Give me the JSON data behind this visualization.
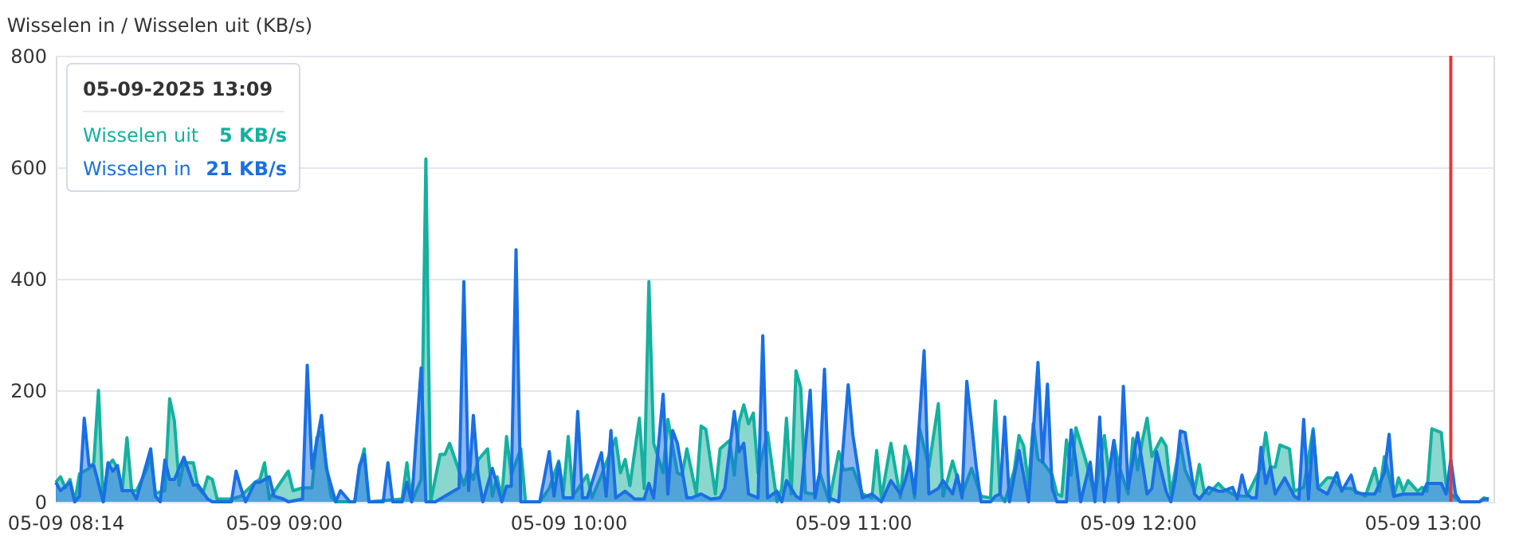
{
  "chart_data": {
    "type": "area",
    "title": "Wisselen in / Wisselen uit (KB/s)",
    "xlim": [
      "2025-05-09T08:12",
      "2025-05-09T13:15"
    ],
    "xticks": [
      {
        "value": "2025-05-09T08:14",
        "label": "05-09 08:14"
      },
      {
        "value": "2025-05-09T09:00",
        "label": "05-09 09:00"
      },
      {
        "value": "2025-05-09T10:00",
        "label": "05-09 10:00"
      },
      {
        "value": "2025-05-09T11:00",
        "label": "05-09 11:00"
      },
      {
        "value": "2025-05-09T12:00",
        "label": "05-09 12:00"
      },
      {
        "value": "2025-05-09T13:00",
        "label": "05-09 13:00"
      }
    ],
    "ylim": [
      0,
      800
    ],
    "yticks": [
      0,
      200,
      400,
      600,
      800
    ],
    "grid": "y",
    "legend": "top left",
    "annotations": [
      "05-09-2025 13:09",
      "5 KB/s",
      "21 KB/s"
    ],
    "ref_lines": [
      {
        "axis": "x",
        "value": "2025-05-09T13:06",
        "color": "#e53935"
      }
    ],
    "series": [
      {
        "name": "Wisselen uit",
        "color": "#14b0a0",
        "x": [
          "2025-05-09T08:12",
          "2025-05-09T08:13",
          "2025-05-09T08:14",
          "2025-05-09T08:15",
          "2025-05-09T08:16",
          "2025-05-09T08:17",
          "2025-05-09T08:19",
          "2025-05-09T08:20",
          "2025-05-09T08:21",
          "2025-05-09T08:22",
          "2025-05-09T08:23",
          "2025-05-09T08:24",
          "2025-05-09T08:25",
          "2025-05-09T08:26",
          "2025-05-09T08:27",
          "2025-05-09T08:28",
          "2025-05-09T08:29",
          "2025-05-09T08:31",
          "2025-05-09T08:32",
          "2025-05-09T08:33",
          "2025-05-09T08:35",
          "2025-05-09T08:36",
          "2025-05-09T08:37",
          "2025-05-09T08:38",
          "2025-05-09T08:39",
          "2025-05-09T08:41",
          "2025-05-09T08:42",
          "2025-05-09T08:43",
          "2025-05-09T08:44",
          "2025-05-09T08:45",
          "2025-05-09T08:46",
          "2025-05-09T08:49",
          "2025-05-09T08:51",
          "2025-05-09T08:54",
          "2025-05-09T08:55",
          "2025-05-09T08:56",
          "2025-05-09T08:57",
          "2025-05-09T08:59",
          "2025-05-09T09:01",
          "2025-05-09T09:02",
          "2025-05-09T09:04",
          "2025-05-09T09:06",
          "2025-05-09T09:07",
          "2025-05-09T09:08",
          "2025-05-09T09:10",
          "2025-05-09T09:11",
          "2025-05-09T09:15",
          "2025-05-09T09:16",
          "2025-05-09T09:17",
          "2025-05-09T09:18",
          "2025-05-09T09:25",
          "2025-05-09T09:26",
          "2025-05-09T09:27",
          "2025-05-09T09:29",
          "2025-05-09T09:30",
          "2025-05-09T09:31",
          "2025-05-09T09:33",
          "2025-05-09T09:34",
          "2025-05-09T09:35",
          "2025-05-09T09:36",
          "2025-05-09T09:38",
          "2025-05-09T09:39",
          "2025-05-09T09:40",
          "2025-05-09T09:41",
          "2025-05-09T09:43",
          "2025-05-09T09:44",
          "2025-05-09T09:45",
          "2025-05-09T09:46",
          "2025-05-09T09:47",
          "2025-05-09T09:48",
          "2025-05-09T09:50",
          "2025-05-09T09:51",
          "2025-05-09T09:54",
          "2025-05-09T09:56",
          "2025-05-09T09:58",
          "2025-05-09T09:59",
          "2025-05-09T10:00",
          "2025-05-09T10:01",
          "2025-05-09T10:04",
          "2025-05-09T10:05",
          "2025-05-09T10:07",
          "2025-05-09T10:10",
          "2025-05-09T10:11",
          "2025-05-09T10:12",
          "2025-05-09T10:13",
          "2025-05-09T10:15",
          "2025-05-09T10:16",
          "2025-05-09T10:17",
          "2025-05-09T10:18",
          "2025-05-09T10:20",
          "2025-05-09T10:21",
          "2025-05-09T10:23",
          "2025-05-09T10:24",
          "2025-05-09T10:25",
          "2025-05-09T10:27",
          "2025-05-09T10:28",
          "2025-05-09T10:29",
          "2025-05-09T10:31",
          "2025-05-09T10:32",
          "2025-05-09T10:34",
          "2025-05-09T10:35",
          "2025-05-09T10:36",
          "2025-05-09T10:37",
          "2025-05-09T10:38",
          "2025-05-09T10:39",
          "2025-05-09T10:40",
          "2025-05-09T10:42",
          "2025-05-09T10:44",
          "2025-05-09T10:45",
          "2025-05-09T10:46",
          "2025-05-09T10:47",
          "2025-05-09T10:48",
          "2025-05-09T10:49",
          "2025-05-09T10:50",
          "2025-05-09T10:52",
          "2025-05-09T10:53",
          "2025-05-09T10:55",
          "2025-05-09T10:57",
          "2025-05-09T10:58",
          "2025-05-09T11:00",
          "2025-05-09T11:02",
          "2025-05-09T11:04",
          "2025-05-09T11:05",
          "2025-05-09T11:06",
          "2025-05-09T11:08",
          "2025-05-09T11:10",
          "2025-05-09T11:11",
          "2025-05-09T11:12",
          "2025-05-09T11:13",
          "2025-05-09T11:14",
          "2025-05-09T11:16",
          "2025-05-09T11:18",
          "2025-05-09T11:19",
          "2025-05-09T11:21",
          "2025-05-09T11:22",
          "2025-05-09T11:23",
          "2025-05-09T11:25",
          "2025-05-09T11:27",
          "2025-05-09T11:29",
          "2025-05-09T11:30",
          "2025-05-09T11:31",
          "2025-05-09T11:32",
          "2025-05-09T11:34",
          "2025-05-09T11:35",
          "2025-05-09T11:36",
          "2025-05-09T11:37",
          "2025-05-09T11:38",
          "2025-05-09T11:39",
          "2025-05-09T11:40",
          "2025-05-09T11:42",
          "2025-05-09T11:43",
          "2025-05-09T11:44",
          "2025-05-09T11:45",
          "2025-05-09T11:46",
          "2025-05-09T11:47",
          "2025-05-09T11:49",
          "2025-05-09T11:51",
          "2025-05-09T11:53",
          "2025-05-09T11:54",
          "2025-05-09T11:55",
          "2025-05-09T11:56",
          "2025-05-09T11:58",
          "2025-05-09T11:59",
          "2025-05-09T12:00",
          "2025-05-09T12:01",
          "2025-05-09T12:02",
          "2025-05-09T12:03",
          "2025-05-09T12:05",
          "2025-05-09T12:06",
          "2025-05-09T12:07",
          "2025-05-09T12:09",
          "2025-05-09T12:10",
          "2025-05-09T12:12",
          "2025-05-09T12:13",
          "2025-05-09T12:14",
          "2025-05-09T12:15",
          "2025-05-09T12:17",
          "2025-05-09T12:18",
          "2025-05-09T12:20",
          "2025-05-09T12:22",
          "2025-05-09T12:23",
          "2025-05-09T12:26",
          "2025-05-09T12:27",
          "2025-05-09T12:28",
          "2025-05-09T12:29",
          "2025-05-09T12:30",
          "2025-05-09T12:32",
          "2025-05-09T12:33",
          "2025-05-09T12:35",
          "2025-05-09T12:37",
          "2025-05-09T12:38",
          "2025-05-09T12:40",
          "2025-05-09T12:41",
          "2025-05-09T12:43",
          "2025-05-09T12:45",
          "2025-05-09T12:46",
          "2025-05-09T12:48",
          "2025-05-09T12:50",
          "2025-05-09T12:51",
          "2025-05-09T12:52",
          "2025-05-09T12:54",
          "2025-05-09T12:55",
          "2025-05-09T12:56",
          "2025-05-09T12:57",
          "2025-05-09T12:59",
          "2025-05-09T13:00",
          "2025-05-09T13:01",
          "2025-05-09T13:02",
          "2025-05-09T13:04",
          "2025-05-09T13:05",
          "2025-05-09T13:06",
          "2025-05-09T13:08",
          "2025-05-09T13:12",
          "2025-05-09T13:13",
          "2025-05-09T13:14"
        ],
        "values": [
          35,
          45,
          25,
          40,
          0,
          50,
          60,
          70,
          200,
          0,
          65,
          75,
          60,
          20,
          115,
          20,
          20,
          55,
          80,
          15,
          20,
          185,
          145,
          30,
          70,
          70,
          25,
          15,
          45,
          40,
          5,
          5,
          10,
          35,
          40,
          70,
          5,
          30,
          55,
          20,
          25,
          25,
          115,
          125,
          10,
          0,
          0,
          60,
          95,
          0,
          5,
          70,
          0,
          40,
          615,
          0,
          85,
          85,
          105,
          80,
          30,
          60,
          40,
          75,
          95,
          10,
          45,
          7,
          117,
          48,
          95,
          0,
          0,
          24,
          73,
          19,
          117,
          10,
          48,
          7,
          48,
          114,
          52,
          76,
          29,
          150,
          24,
          395,
          105,
          52,
          148,
          52,
          48,
          95,
          14,
          136,
          130,
          14,
          95,
          110,
          48,
          143,
          174,
          140,
          159,
          52,
          124,
          0,
          24,
          150,
          14,
          235,
          205,
          16,
          14,
          52,
          0,
          90,
          57,
          60,
          14,
          7,
          92,
          7,
          105,
          7,
          100,
          71,
          7,
          133,
          62,
          176,
          10,
          73,
          43,
          14,
          60,
          10,
          7,
          181,
          14,
          0,
          57,
          119,
          100,
          29,
          140,
          76,
          71,
          48,
          14,
          10,
          111,
          48,
          133,
          76,
          10,
          119,
          48,
          110,
          67,
          14,
          114,
          57,
          110,
          150,
          81,
          114,
          100,
          14,
          105,
          57,
          19,
          67,
          19,
          14,
          33,
          24,
          14,
          10,
          10,
          62,
          124,
          62,
          62,
          102,
          95,
          19,
          26,
          131,
          24,
          43,
          43,
          24,
          24,
          19,
          10,
          60,
          19,
          81,
          10,
          43,
          19,
          38,
          19,
          26,
          19,
          131,
          124,
          33,
          14,
          0,
          0,
          7,
          5
        ]
      },
      {
        "name": "Wisselen in",
        "color": "#1a6fe3",
        "x": [
          "2025-05-09T08:12",
          "2025-05-09T08:13",
          "2025-05-09T08:15",
          "2025-05-09T08:16",
          "2025-05-09T08:17",
          "2025-05-09T08:18",
          "2025-05-09T08:19",
          "2025-05-09T08:20",
          "2025-05-09T08:22",
          "2025-05-09T08:23",
          "2025-05-09T08:24",
          "2025-05-09T08:25",
          "2025-05-09T08:26",
          "2025-05-09T08:28",
          "2025-05-09T08:29",
          "2025-05-09T08:31",
          "2025-05-09T08:32",
          "2025-05-09T08:33",
          "2025-05-09T08:34",
          "2025-05-09T08:35",
          "2025-05-09T08:36",
          "2025-05-09T08:37",
          "2025-05-09T08:39",
          "2025-05-09T08:41",
          "2025-05-09T08:42",
          "2025-05-09T08:44",
          "2025-05-09T08:45",
          "2025-05-09T08:49",
          "2025-05-09T08:50",
          "2025-05-09T08:51",
          "2025-05-09T08:52",
          "2025-05-09T08:54",
          "2025-05-09T08:55",
          "2025-05-09T08:57",
          "2025-05-09T08:58",
          "2025-05-09T09:00",
          "2025-05-09T09:01",
          "2025-05-09T09:04",
          "2025-05-09T09:05",
          "2025-05-09T09:06",
          "2025-05-09T09:08",
          "2025-05-09T09:09",
          "2025-05-09T09:11",
          "2025-05-09T09:12",
          "2025-05-09T09:14",
          "2025-05-09T09:15",
          "2025-05-09T09:16",
          "2025-05-09T09:17",
          "2025-05-09T09:18",
          "2025-05-09T09:21",
          "2025-05-09T09:22",
          "2025-05-09T09:23",
          "2025-05-09T09:25",
          "2025-05-09T09:26",
          "2025-05-09T09:27",
          "2025-05-09T09:29",
          "2025-05-09T09:30",
          "2025-05-09T09:32",
          "2025-05-09T09:34",
          "2025-05-09T09:37",
          "2025-05-09T09:38",
          "2025-05-09T09:39",
          "2025-05-09T09:40",
          "2025-05-09T09:41",
          "2025-05-09T09:42",
          "2025-05-09T09:44",
          "2025-05-09T09:46",
          "2025-05-09T09:47",
          "2025-05-09T09:48",
          "2025-05-09T09:49",
          "2025-05-09T09:50",
          "2025-05-09T09:54",
          "2025-05-09T09:56",
          "2025-05-09T09:57",
          "2025-05-09T09:58",
          "2025-05-09T09:59",
          "2025-05-09T10:01",
          "2025-05-09T10:02",
          "2025-05-09T10:03",
          "2025-05-09T10:04",
          "2025-05-09T10:06",
          "2025-05-09T10:07",
          "2025-05-09T10:08",
          "2025-05-09T10:09",
          "2025-05-09T10:10",
          "2025-05-09T10:12",
          "2025-05-09T10:14",
          "2025-05-09T10:16",
          "2025-05-09T10:17",
          "2025-05-09T10:18",
          "2025-05-09T10:20",
          "2025-05-09T10:21",
          "2025-05-09T10:22",
          "2025-05-09T10:23",
          "2025-05-09T10:25",
          "2025-05-09T10:26",
          "2025-05-09T10:28",
          "2025-05-09T10:30",
          "2025-05-09T10:32",
          "2025-05-09T10:33",
          "2025-05-09T10:35",
          "2025-05-09T10:36",
          "2025-05-09T10:37",
          "2025-05-09T10:38",
          "2025-05-09T10:40",
          "2025-05-09T10:41",
          "2025-05-09T10:42",
          "2025-05-09T10:44",
          "2025-05-09T10:45",
          "2025-05-09T10:46",
          "2025-05-09T10:48",
          "2025-05-09T10:49",
          "2025-05-09T10:51",
          "2025-05-09T10:52",
          "2025-05-09T10:53",
          "2025-05-09T10:54",
          "2025-05-09T10:55",
          "2025-05-09T10:57",
          "2025-05-09T10:59",
          "2025-05-09T11:00",
          "2025-05-09T11:02",
          "2025-05-09T11:04",
          "2025-05-09T11:06",
          "2025-05-09T11:08",
          "2025-05-09T11:10",
          "2025-05-09T11:11",
          "2025-05-09T11:12",
          "2025-05-09T11:13",
          "2025-05-09T11:15",
          "2025-05-09T11:16",
          "2025-05-09T11:18",
          "2025-05-09T11:19",
          "2025-05-09T11:21",
          "2025-05-09T11:22",
          "2025-05-09T11:23",
          "2025-05-09T11:24",
          "2025-05-09T11:26",
          "2025-05-09T11:27",
          "2025-05-09T11:29",
          "2025-05-09T11:30",
          "2025-05-09T11:31",
          "2025-05-09T11:32",
          "2025-05-09T11:33",
          "2025-05-09T11:35",
          "2025-05-09T11:37",
          "2025-05-09T11:39",
          "2025-05-09T11:40",
          "2025-05-09T11:41",
          "2025-05-09T11:42",
          "2025-05-09T11:43",
          "2025-05-09T11:45",
          "2025-05-09T11:46",
          "2025-05-09T11:47",
          "2025-05-09T11:48",
          "2025-05-09T11:50",
          "2025-05-09T11:51",
          "2025-05-09T11:52",
          "2025-05-09T11:53",
          "2025-05-09T11:55",
          "2025-05-09T11:56",
          "2025-05-09T11:57",
          "2025-05-09T11:58",
          "2025-05-09T12:00",
          "2025-05-09T12:02",
          "2025-05-09T12:03",
          "2025-05-09T12:04",
          "2025-05-09T12:06",
          "2025-05-09T12:07",
          "2025-05-09T12:08",
          "2025-05-09T12:09",
          "2025-05-09T12:10",
          "2025-05-09T12:12",
          "2025-05-09T12:13",
          "2025-05-09T12:15",
          "2025-05-09T12:17",
          "2025-05-09T12:18",
          "2025-05-09T12:20",
          "2025-05-09T12:21",
          "2025-05-09T12:22",
          "2025-05-09T12:23",
          "2025-05-09T12:24",
          "2025-05-09T12:25",
          "2025-05-09T12:26",
          "2025-05-09T12:27",
          "2025-05-09T12:28",
          "2025-05-09T12:29",
          "2025-05-09T12:31",
          "2025-05-09T12:33",
          "2025-05-09T12:34",
          "2025-05-09T12:35",
          "2025-05-09T12:36",
          "2025-05-09T12:37",
          "2025-05-09T12:38",
          "2025-05-09T12:40",
          "2025-05-09T12:42",
          "2025-05-09T12:43",
          "2025-05-09T12:45",
          "2025-05-09T12:46",
          "2025-05-09T12:48",
          "2025-05-09T12:50",
          "2025-05-09T12:52",
          "2025-05-09T12:53",
          "2025-05-09T12:54",
          "2025-05-09T12:56",
          "2025-05-09T12:59",
          "2025-05-09T13:00",
          "2025-05-09T13:01",
          "2025-05-09T13:03",
          "2025-05-09T13:04",
          "2025-05-09T13:05",
          "2025-05-09T13:06",
          "2025-05-09T13:07",
          "2025-05-09T13:08",
          "2025-05-09T13:12",
          "2025-05-09T13:13",
          "2025-05-09T13:14"
        ],
        "values": [
          35,
          20,
          35,
          0,
          10,
          150,
          65,
          65,
          0,
          70,
          55,
          65,
          20,
          20,
          5,
          65,
          95,
          10,
          0,
          75,
          40,
          40,
          80,
          30,
          30,
          5,
          0,
          0,
          55,
          25,
          0,
          35,
          35,
          45,
          10,
          5,
          0,
          5,
          245,
          60,
          155,
          60,
          0,
          20,
          0,
          0,
          65,
          85,
          0,
          0,
          70,
          0,
          0,
          35,
          0,
          240,
          0,
          0,
          10,
          25,
          395,
          20,
          155,
          50,
          0,
          60,
          0,
          28,
          28,
          452,
          0,
          0,
          90,
          10,
          70,
          7,
          7,
          162,
          7,
          7,
          62,
          88,
          10,
          128,
          7,
          19,
          5,
          5,
          33,
          7,
          193,
          14,
          128,
          105,
          7,
          7,
          14,
          5,
          7,
          24,
          162,
          90,
          105,
          14,
          7,
          298,
          7,
          19,
          0,
          38,
          10,
          5,
          200,
          7,
          52,
          238,
          7,
          0,
          210,
          119,
          7,
          14,
          0,
          38,
          14,
          38,
          70,
          14,
          271,
          14,
          24,
          38,
          14,
          48,
          7,
          216,
          62,
          0,
          0,
          10,
          14,
          152,
          0,
          92,
          0,
          250,
          71,
          211,
          24,
          0,
          0,
          129,
          71,
          0,
          71,
          0,
          152,
          0,
          110,
          0,
          207,
          24,
          124,
          14,
          24,
          90,
          19,
          0,
          43,
          127,
          124,
          14,
          5,
          26,
          19,
          19,
          26,
          5,
          48,
          14,
          7,
          7,
          98,
          33,
          62,
          14,
          43,
          10,
          5,
          148,
          5,
          127,
          24,
          14,
          52,
          19,
          48,
          16,
          14,
          14,
          52,
          121,
          10,
          14,
          14,
          14,
          33,
          33,
          33,
          14,
          76,
          14,
          0,
          0,
          5,
          5
        ]
      }
    ]
  }
}
